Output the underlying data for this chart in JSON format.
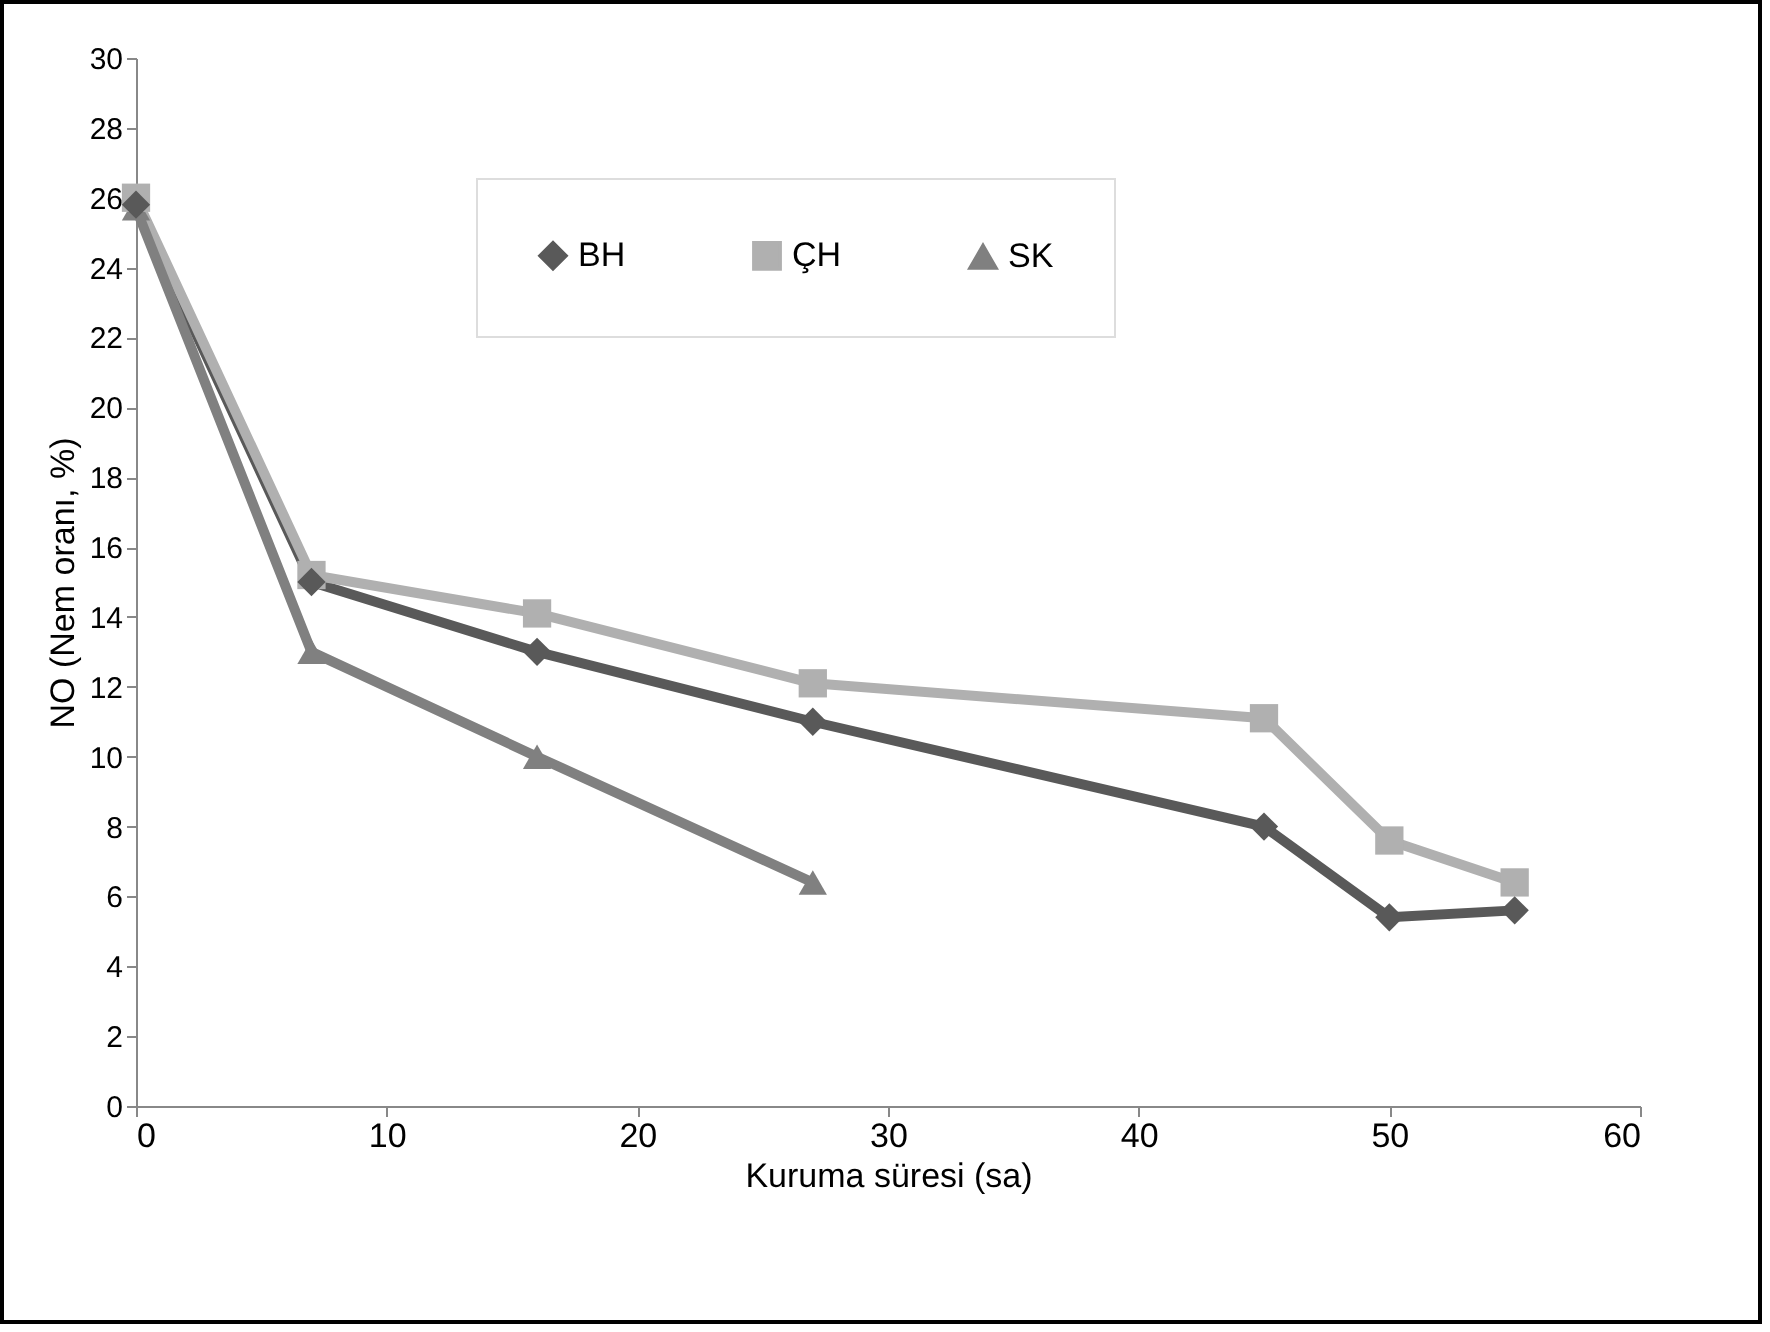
{
  "chart_data": {
    "type": "line",
    "xlabel": "Kuruma süresi (sa)",
    "ylabel": "NO (Nem oranı, %)",
    "xlim": [
      0,
      60
    ],
    "xticks": [
      0,
      10,
      20,
      30,
      40,
      50,
      60
    ],
    "ylim": [
      0,
      30
    ],
    "yticks": [
      0,
      2,
      4,
      6,
      8,
      10,
      12,
      14,
      16,
      18,
      20,
      22,
      24,
      26,
      28,
      30
    ],
    "grid": false,
    "legend": "top",
    "series": [
      {
        "name": "BH",
        "color": "#595959",
        "marker": "diamond",
        "x": [
          0,
          7,
          16,
          27,
          45,
          50,
          55
        ],
        "values": [
          25.8,
          15,
          13,
          11,
          8,
          5.4,
          5.6
        ]
      },
      {
        "name": "ÇH",
        "color": "#b0b0b0",
        "marker": "square",
        "x": [
          0,
          7,
          16,
          27,
          45,
          50,
          55
        ],
        "values": [
          26,
          15.2,
          14.1,
          12.1,
          11.1,
          7.6,
          6.4
        ]
      },
      {
        "name": "SK",
        "color": "#808080",
        "marker": "triangle",
        "x": [
          0,
          7,
          16,
          27
        ],
        "values": [
          25.7,
          13,
          10,
          6.4
        ]
      }
    ]
  }
}
